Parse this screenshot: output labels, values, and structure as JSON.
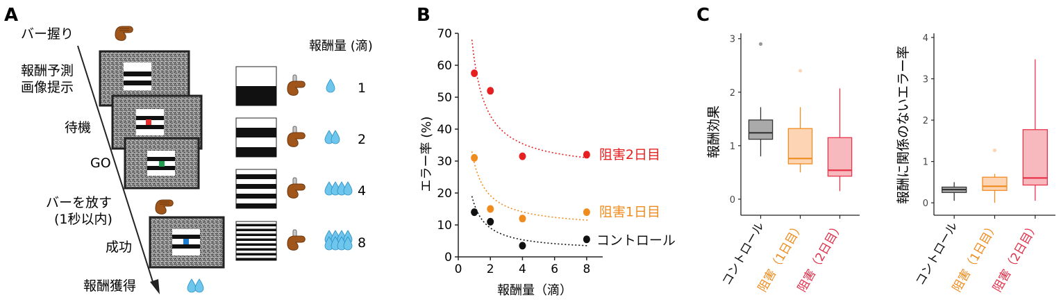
{
  "panel_a": {
    "panel_letter": "A",
    "steps": [
      "バー握り",
      "報酬予測",
      "画像提示",
      "待機",
      "GO",
      "バーを放す",
      "(1秒以内)",
      "成功",
      "報酬獲得"
    ],
    "reward_header": "報酬量 (滴)",
    "reward_levels": [
      "1",
      "2",
      "4",
      "8"
    ],
    "cue_stripe_counts": [
      1,
      2,
      4,
      8
    ],
    "go_cue_colors": {
      "wait": "#e53030",
      "go": "#20a050",
      "success": "#1e7fd0"
    },
    "icons": {
      "hand": "hand-grip-icon",
      "drop": "water-drop-icon"
    }
  },
  "chart_data": [
    {
      "type": "scatter",
      "panel_letter": "B",
      "xlabel": "報酬量（滴）",
      "ylabel": "エラー率 (%)",
      "xlim": [
        0,
        9
      ],
      "ylim": [
        0,
        70
      ],
      "xticks": [
        "0",
        "2",
        "4",
        "6",
        "8"
      ],
      "yticks": [
        "0",
        "10",
        "20",
        "30",
        "40",
        "50",
        "60",
        "70"
      ],
      "x": [
        1,
        2,
        4,
        8
      ],
      "fit": "dotted curve",
      "series": [
        {
          "name": "阻害2日目",
          "color": "#e62020",
          "values": [
            57.5,
            52,
            31.5,
            32
          ],
          "fit_start": 68,
          "fit_end": 31
        },
        {
          "name": "阻害1日目",
          "color": "#f08c1e",
          "values": [
            31,
            15,
            12,
            14
          ],
          "fit_start": 33,
          "fit_end": 11.5
        },
        {
          "name": "コントロール",
          "color": "#111111",
          "values": [
            14,
            11,
            3.5,
            5.5
          ],
          "fit_start": 19,
          "fit_end": 3.5
        }
      ]
    },
    {
      "type": "box",
      "panel_letter": "C",
      "ylabel": "報酬効果",
      "ylim": [
        -0.3,
        3.1
      ],
      "yticks": [
        "0",
        "1",
        "2",
        "3"
      ],
      "categories": [
        "コントロール",
        "阻害（1日目）",
        "阻害（2日目）"
      ],
      "category_colors": [
        "#111111",
        "#f08c1e",
        "#e0304a"
      ],
      "boxes": [
        {
          "fill": "#aaaaaa",
          "stroke": "#333333",
          "min": 0.8,
          "q1": 1.12,
          "median": 1.24,
          "q3": 1.48,
          "max": 1.72,
          "outliers": [
            2.9
          ]
        },
        {
          "fill": "#fdd5b5",
          "stroke": "#f08c1e",
          "min": 0.5,
          "q1": 0.66,
          "median": 0.76,
          "q3": 1.32,
          "max": 1.72,
          "outliers": [
            2.4
          ]
        },
        {
          "fill": "#f7b8be",
          "stroke": "#e8344a",
          "min": 0.15,
          "q1": 0.43,
          "median": 0.54,
          "q3": 1.15,
          "max": 2.07,
          "outliers": []
        }
      ]
    },
    {
      "type": "box",
      "ylabel": "報酬に関係のないエラー率",
      "ylim": [
        -0.3,
        4.1
      ],
      "yticks": [
        "0",
        "1",
        "2",
        "3",
        "4"
      ],
      "categories": [
        "コントロール",
        "阻害（1日目）",
        "阻害（2日目）"
      ],
      "category_colors": [
        "#111111",
        "#f08c1e",
        "#e0304a"
      ],
      "boxes": [
        {
          "fill": "#aaaaaa",
          "stroke": "#333333",
          "min": 0.05,
          "q1": 0.25,
          "median": 0.32,
          "q3": 0.38,
          "max": 0.5,
          "outliers": []
        },
        {
          "fill": "#fdd5b5",
          "stroke": "#f08c1e",
          "min": 0.0,
          "q1": 0.3,
          "median": 0.4,
          "q3": 0.62,
          "max": 0.7,
          "outliers": [
            1.27
          ]
        },
        {
          "fill": "#f7b8be",
          "stroke": "#e8344a",
          "min": 0.05,
          "q1": 0.43,
          "median": 0.6,
          "q3": 1.77,
          "max": 3.47,
          "outliers": []
        }
      ]
    }
  ]
}
